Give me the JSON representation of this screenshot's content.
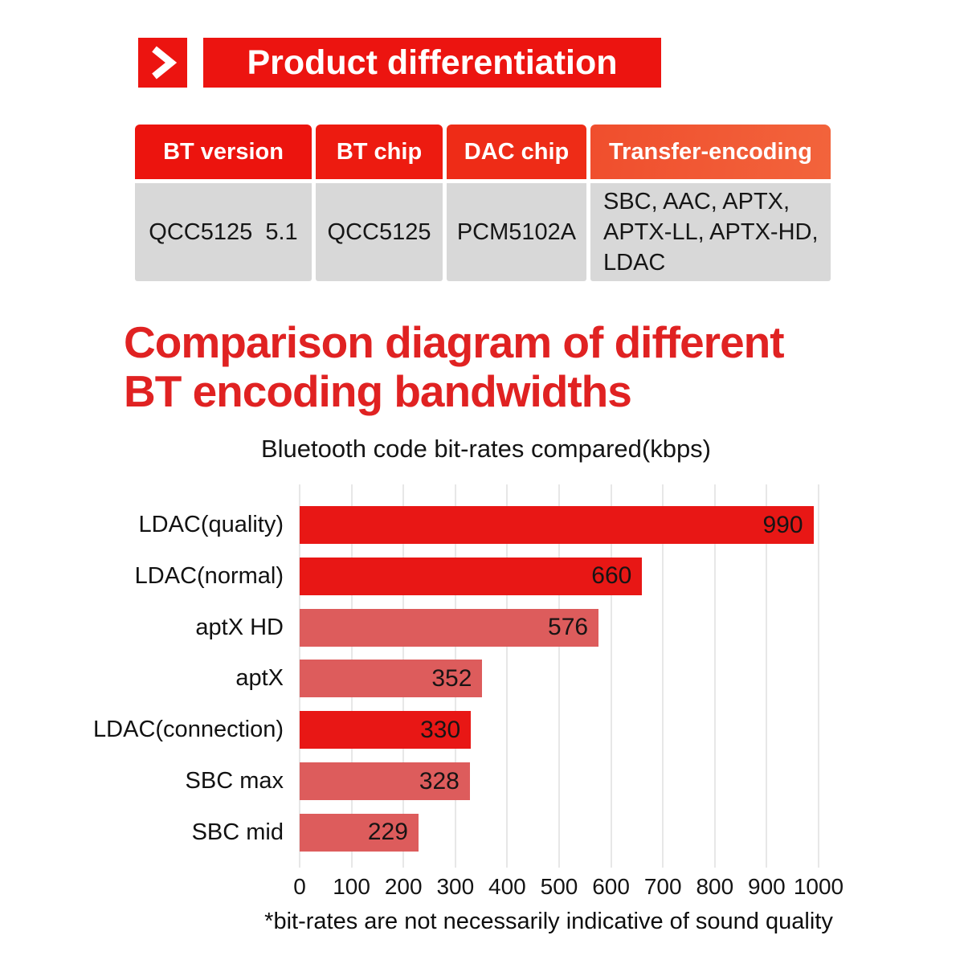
{
  "header": {
    "title": "Product differentiation"
  },
  "table": {
    "columns": [
      "BT version",
      "BT chip",
      "DAC chip",
      "Transfer-encoding"
    ],
    "rows": [
      [
        "QCC5125  5.1",
        "QCC5125",
        "PCM5102A",
        "SBC, AAC, APTX,\nAPTX-LL, APTX-HD,\nLDAC"
      ]
    ]
  },
  "section": {
    "title_line1": "Comparison diagram of different",
    "title_line2": "BT encoding bandwidths",
    "subtitle": "Bluetooth code bit-rates compared(kbps)"
  },
  "chart_data": {
    "type": "bar",
    "orientation": "horizontal",
    "title": "Bluetooth code bit-rates compared(kbps)",
    "categories": [
      "LDAC(quality)",
      "LDAC(normal)",
      "aptX HD",
      "aptX",
      "LDAC(connection)",
      "SBC max",
      "SBC mid"
    ],
    "values": [
      990,
      660,
      576,
      352,
      330,
      328,
      229
    ],
    "bar_colors": [
      "#e81715",
      "#e81715",
      "#dd5c5c",
      "#dd5c5c",
      "#e81715",
      "#dd5c5c",
      "#dd5c5c"
    ],
    "xlabel": "",
    "ylabel": "",
    "xlim": [
      0,
      1000
    ],
    "x_ticks": [
      0,
      100,
      200,
      300,
      400,
      500,
      600,
      700,
      800,
      900,
      1000
    ],
    "grid": true,
    "legend": false,
    "value_label_position": "inside-end"
  },
  "footnote": "*bit-rates are not necessarily indicative of sound quality",
  "colors": {
    "accent_red": "#ec1410",
    "title_red": "#e02222",
    "bar_dark": "#e81715",
    "bar_light": "#dd5c5c",
    "table_cell_gray": "#d8d8d8",
    "table_header_colors": [
      "#ec140e",
      "#ed1b10",
      "#ee2c17",
      "#f04e2d"
    ],
    "table_header_orange_end": "#f2643c",
    "gridline": "#e7e7e7"
  }
}
